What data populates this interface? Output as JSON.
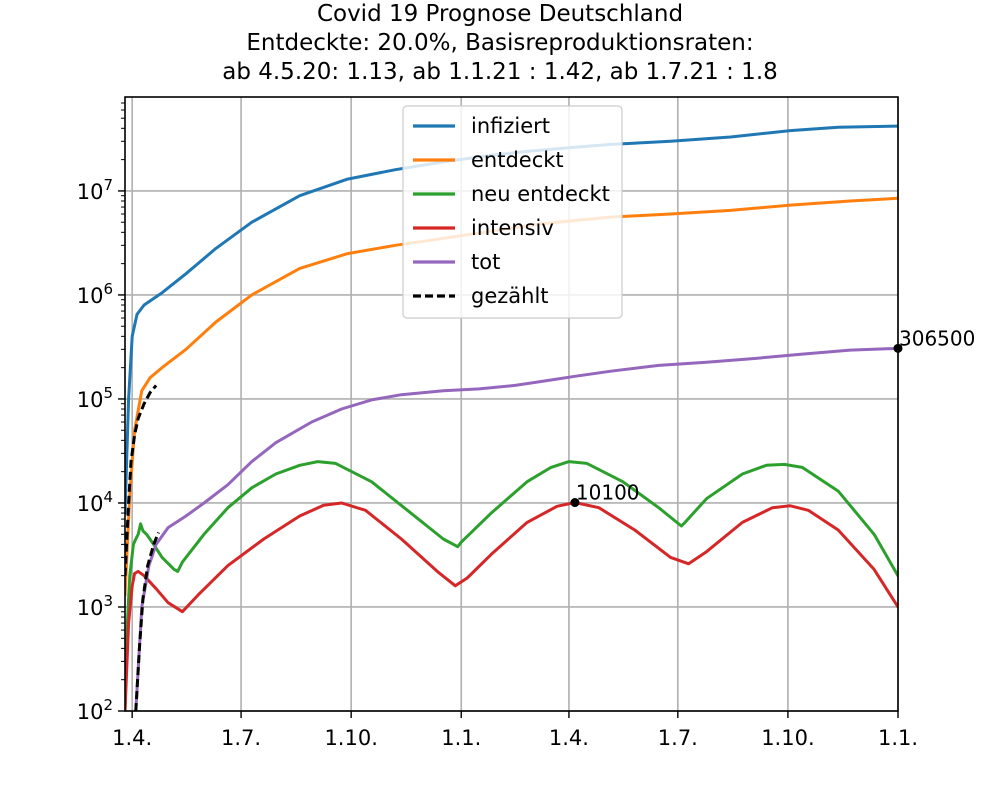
{
  "chart_data": {
    "type": "line",
    "title_lines": [
      "Covid 19 Prognose Deutschland",
      "Entdeckte: 20.0%, Basisreproduktionsraten:",
      "ab 4.5.20: 1.13, ab 1.1.21 : 1.42, ab 1.7.21 : 1.8"
    ],
    "x_tick_labels": [
      "1.4.",
      "1.7.",
      "1.10.",
      "1.1.",
      "1.4.",
      "1.7.",
      "1.10.",
      "1.1."
    ],
    "x_ticks_day": [
      0,
      91,
      183,
      275,
      365,
      456,
      548,
      640
    ],
    "xlim_day": [
      -6,
      640
    ],
    "y_scale": "log",
    "ylim": [
      100,
      80000000
    ],
    "y_ticks": [
      {
        "value": 100,
        "base": "10",
        "exp": "2"
      },
      {
        "value": 1000,
        "base": "10",
        "exp": "3"
      },
      {
        "value": 10000,
        "base": "10",
        "exp": "4"
      },
      {
        "value": 100000,
        "base": "10",
        "exp": "5"
      },
      {
        "value": 1000000,
        "base": "10",
        "exp": "6"
      },
      {
        "value": 10000000,
        "base": "10",
        "exp": "7"
      }
    ],
    "grid": true,
    "legend_position": "top-center",
    "series": [
      {
        "name": "infiziert",
        "color": "#1f77b4",
        "style": "solid",
        "points": [
          [
            -6,
            8000
          ],
          [
            -3,
            100000
          ],
          [
            0,
            400000
          ],
          [
            4,
            650000
          ],
          [
            10,
            800000
          ],
          [
            25,
            1050000
          ],
          [
            45,
            1600000
          ],
          [
            70,
            2800000
          ],
          [
            100,
            5000000
          ],
          [
            140,
            9000000
          ],
          [
            180,
            13000000
          ],
          [
            220,
            16000000
          ],
          [
            260,
            19000000
          ],
          [
            300,
            22000000
          ],
          [
            330,
            24000000
          ],
          [
            365,
            26000000
          ],
          [
            400,
            28000000
          ],
          [
            450,
            30000000
          ],
          [
            500,
            33000000
          ],
          [
            550,
            38000000
          ],
          [
            590,
            41000000
          ],
          [
            640,
            42000000
          ]
        ]
      },
      {
        "name": "entdeckt",
        "color": "#ff7f0e",
        "style": "solid",
        "points": [
          [
            -6,
            1300
          ],
          [
            -2,
            12000
          ],
          [
            2,
            50000
          ],
          [
            8,
            120000
          ],
          [
            15,
            160000
          ],
          [
            25,
            200000
          ],
          [
            45,
            300000
          ],
          [
            70,
            550000
          ],
          [
            100,
            1000000
          ],
          [
            140,
            1800000
          ],
          [
            180,
            2500000
          ],
          [
            220,
            3000000
          ],
          [
            260,
            3500000
          ],
          [
            300,
            4100000
          ],
          [
            340,
            4800000
          ],
          [
            370,
            5200000
          ],
          [
            400,
            5600000
          ],
          [
            450,
            6000000
          ],
          [
            500,
            6500000
          ],
          [
            550,
            7300000
          ],
          [
            600,
            8000000
          ],
          [
            640,
            8500000
          ]
        ]
      },
      {
        "name": "neu entdeckt",
        "color": "#2ca02c",
        "style": "solid",
        "points": [
          [
            -6,
            100
          ],
          [
            -4,
            700
          ],
          [
            -2,
            2000
          ],
          [
            1,
            4000
          ],
          [
            3,
            4500
          ],
          [
            5,
            5000
          ],
          [
            7,
            6300
          ],
          [
            9,
            5400
          ],
          [
            12,
            5000
          ],
          [
            18,
            4000
          ],
          [
            25,
            3000
          ],
          [
            35,
            2300
          ],
          [
            38,
            2200
          ],
          [
            42,
            2700
          ],
          [
            60,
            5000
          ],
          [
            80,
            9000
          ],
          [
            100,
            14000
          ],
          [
            120,
            19000
          ],
          [
            140,
            23000
          ],
          [
            155,
            25000
          ],
          [
            170,
            24000
          ],
          [
            200,
            16000
          ],
          [
            230,
            8500
          ],
          [
            260,
            4500
          ],
          [
            272,
            3800
          ],
          [
            275,
            4200
          ],
          [
            300,
            8000
          ],
          [
            330,
            16000
          ],
          [
            350,
            22000
          ],
          [
            365,
            25000
          ],
          [
            380,
            24000
          ],
          [
            410,
            16000
          ],
          [
            440,
            9000
          ],
          [
            459,
            6000
          ],
          [
            462,
            6500
          ],
          [
            480,
            11000
          ],
          [
            510,
            19000
          ],
          [
            530,
            23000
          ],
          [
            545,
            23500
          ],
          [
            560,
            22000
          ],
          [
            590,
            13000
          ],
          [
            620,
            5000
          ],
          [
            640,
            2000
          ]
        ]
      },
      {
        "name": "intensiv",
        "color": "#d62728",
        "style": "solid",
        "points": [
          [
            -6,
            100
          ],
          [
            -3,
            700
          ],
          [
            0,
            1600
          ],
          [
            2,
            2100
          ],
          [
            5,
            2200
          ],
          [
            10,
            2000
          ],
          [
            20,
            1500
          ],
          [
            30,
            1100
          ],
          [
            42,
            900
          ],
          [
            55,
            1300
          ],
          [
            80,
            2500
          ],
          [
            110,
            4500
          ],
          [
            140,
            7500
          ],
          [
            160,
            9500
          ],
          [
            175,
            10000
          ],
          [
            195,
            8500
          ],
          [
            225,
            4500
          ],
          [
            255,
            2200
          ],
          [
            270,
            1600
          ],
          [
            280,
            1900
          ],
          [
            300,
            3200
          ],
          [
            330,
            6500
          ],
          [
            355,
            9300
          ],
          [
            370,
            10100
          ],
          [
            390,
            9000
          ],
          [
            420,
            5500
          ],
          [
            450,
            3000
          ],
          [
            465,
            2600
          ],
          [
            480,
            3400
          ],
          [
            510,
            6500
          ],
          [
            535,
            9000
          ],
          [
            550,
            9400
          ],
          [
            565,
            8500
          ],
          [
            590,
            5500
          ],
          [
            620,
            2300
          ],
          [
            640,
            1000
          ]
        ]
      },
      {
        "name": "tot",
        "color": "#9467bd",
        "style": "solid",
        "points": [
          [
            3,
            100
          ],
          [
            8,
            1000
          ],
          [
            14,
            2500
          ],
          [
            20,
            4000
          ],
          [
            30,
            5800
          ],
          [
            45,
            7500
          ],
          [
            60,
            10000
          ],
          [
            80,
            15000
          ],
          [
            100,
            25000
          ],
          [
            120,
            38000
          ],
          [
            150,
            60000
          ],
          [
            175,
            80000
          ],
          [
            200,
            98000
          ],
          [
            225,
            110000
          ],
          [
            260,
            120000
          ],
          [
            290,
            125000
          ],
          [
            320,
            135000
          ],
          [
            350,
            152000
          ],
          [
            370,
            165000
          ],
          [
            400,
            185000
          ],
          [
            440,
            210000
          ],
          [
            480,
            225000
          ],
          [
            520,
            245000
          ],
          [
            560,
            270000
          ],
          [
            600,
            295000
          ],
          [
            640,
            306500
          ]
        ]
      },
      {
        "name": "gezählt",
        "color": "#000000",
        "style": "dashed",
        "segments": [
          [
            [
              -6,
              2000
            ],
            [
              -3,
              10000
            ],
            [
              -1,
              25000
            ],
            [
              2,
              45000
            ],
            [
              5,
              65000
            ],
            [
              10,
              90000
            ],
            [
              15,
              115000
            ],
            [
              20,
              135000
            ]
          ],
          [
            [
              3,
              100
            ],
            [
              6,
              400
            ],
            [
              9,
              1200
            ],
            [
              13,
              2500
            ],
            [
              18,
              4000
            ],
            [
              22,
              5200
            ]
          ]
        ]
      }
    ],
    "annotations": [
      {
        "label": "306500",
        "x_day": 640,
        "y": 306500
      },
      {
        "label": "10100",
        "x_day": 370,
        "y": 10100
      }
    ]
  }
}
